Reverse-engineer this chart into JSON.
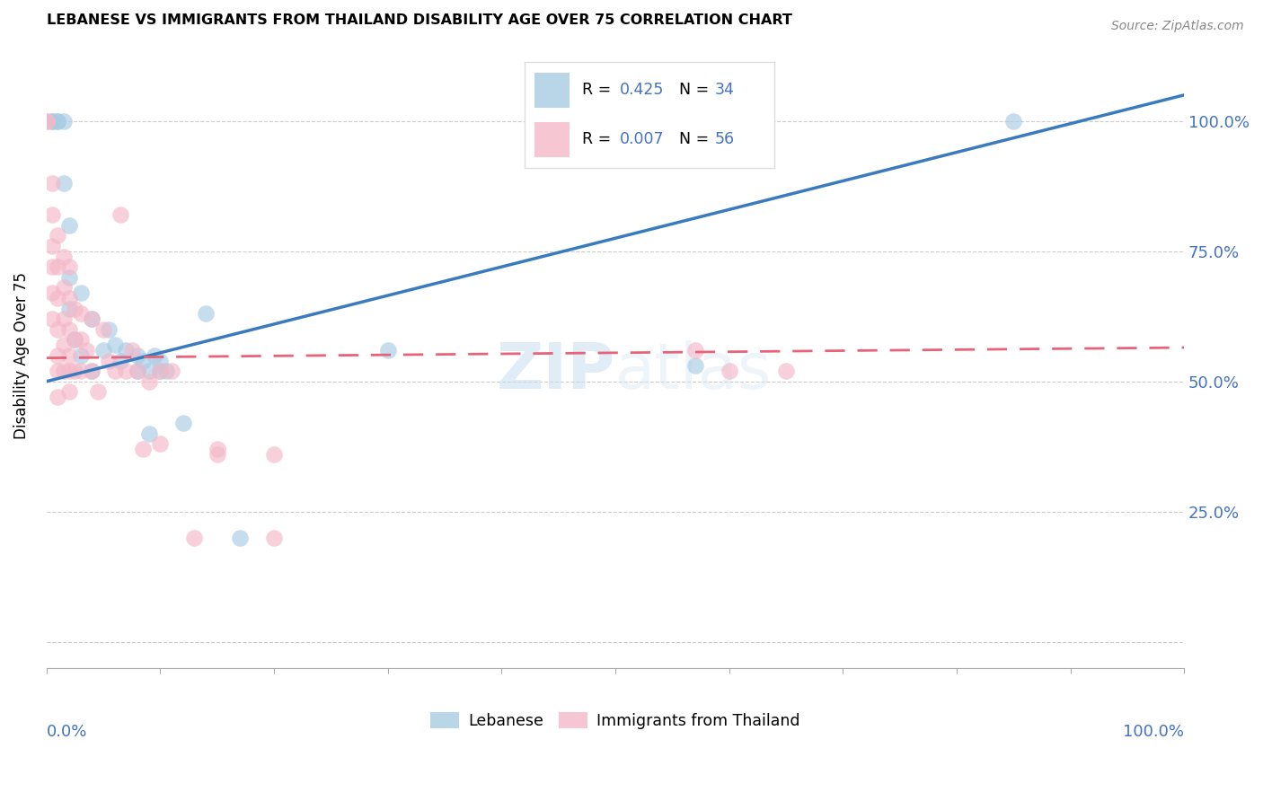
{
  "title": "LEBANESE VS IMMIGRANTS FROM THAILAND DISABILITY AGE OVER 75 CORRELATION CHART",
  "source": "Source: ZipAtlas.com",
  "ylabel": "Disability Age Over 75",
  "legend_blue_label": "Lebanese",
  "legend_pink_label": "Immigrants from Thailand",
  "watermark_zip": "ZIP",
  "watermark_atlas": "atlas",
  "blue_color": "#a8cce4",
  "pink_color": "#f4b8c8",
  "blue_line_color": "#3a7bbf",
  "pink_line_color": "#e8637a",
  "ytick_color": "#4472c4",
  "xlim": [
    0.0,
    1.0
  ],
  "ylim": [
    -0.05,
    1.15
  ],
  "y_ticks": [
    0.0,
    0.25,
    0.5,
    0.75,
    1.0
  ],
  "y_tick_labels": [
    "",
    "25.0%",
    "50.0%",
    "75.0%",
    "100.0%"
  ],
  "blue_x": [
    0.005,
    0.005,
    0.01,
    0.01,
    0.015,
    0.015,
    0.02,
    0.02,
    0.02,
    0.025,
    0.03,
    0.03,
    0.04,
    0.04,
    0.05,
    0.055,
    0.06,
    0.065,
    0.07,
    0.08,
    0.08,
    0.085,
    0.09,
    0.09,
    0.095,
    0.1,
    0.1,
    0.105,
    0.12,
    0.14,
    0.17,
    0.3,
    0.57,
    0.85
  ],
  "blue_y": [
    1.0,
    1.0,
    1.0,
    1.0,
    1.0,
    0.88,
    0.8,
    0.7,
    0.64,
    0.58,
    0.67,
    0.55,
    0.62,
    0.52,
    0.56,
    0.6,
    0.57,
    0.54,
    0.56,
    0.55,
    0.52,
    0.54,
    0.52,
    0.4,
    0.55,
    0.54,
    0.52,
    0.52,
    0.42,
    0.63,
    0.2,
    0.56,
    0.53,
    1.0
  ],
  "pink_x": [
    0.0,
    0.0,
    0.005,
    0.005,
    0.005,
    0.005,
    0.005,
    0.005,
    0.01,
    0.01,
    0.01,
    0.01,
    0.01,
    0.01,
    0.01,
    0.015,
    0.015,
    0.015,
    0.015,
    0.015,
    0.02,
    0.02,
    0.02,
    0.02,
    0.02,
    0.02,
    0.025,
    0.025,
    0.025,
    0.03,
    0.03,
    0.03,
    0.035,
    0.04,
    0.04,
    0.045,
    0.05,
    0.055,
    0.06,
    0.065,
    0.07,
    0.075,
    0.08,
    0.085,
    0.09,
    0.1,
    0.1,
    0.11,
    0.13,
    0.15,
    0.2,
    0.15,
    0.2,
    0.57,
    0.6,
    0.65
  ],
  "pink_y": [
    1.0,
    1.0,
    0.88,
    0.82,
    0.76,
    0.72,
    0.67,
    0.62,
    0.78,
    0.72,
    0.66,
    0.6,
    0.55,
    0.52,
    0.47,
    0.74,
    0.68,
    0.62,
    0.57,
    0.52,
    0.72,
    0.66,
    0.6,
    0.55,
    0.52,
    0.48,
    0.64,
    0.58,
    0.52,
    0.63,
    0.58,
    0.52,
    0.56,
    0.62,
    0.52,
    0.48,
    0.6,
    0.54,
    0.52,
    0.82,
    0.52,
    0.56,
    0.52,
    0.37,
    0.5,
    0.52,
    0.38,
    0.52,
    0.2,
    0.37,
    0.2,
    0.36,
    0.36,
    0.56,
    0.52,
    0.52
  ]
}
